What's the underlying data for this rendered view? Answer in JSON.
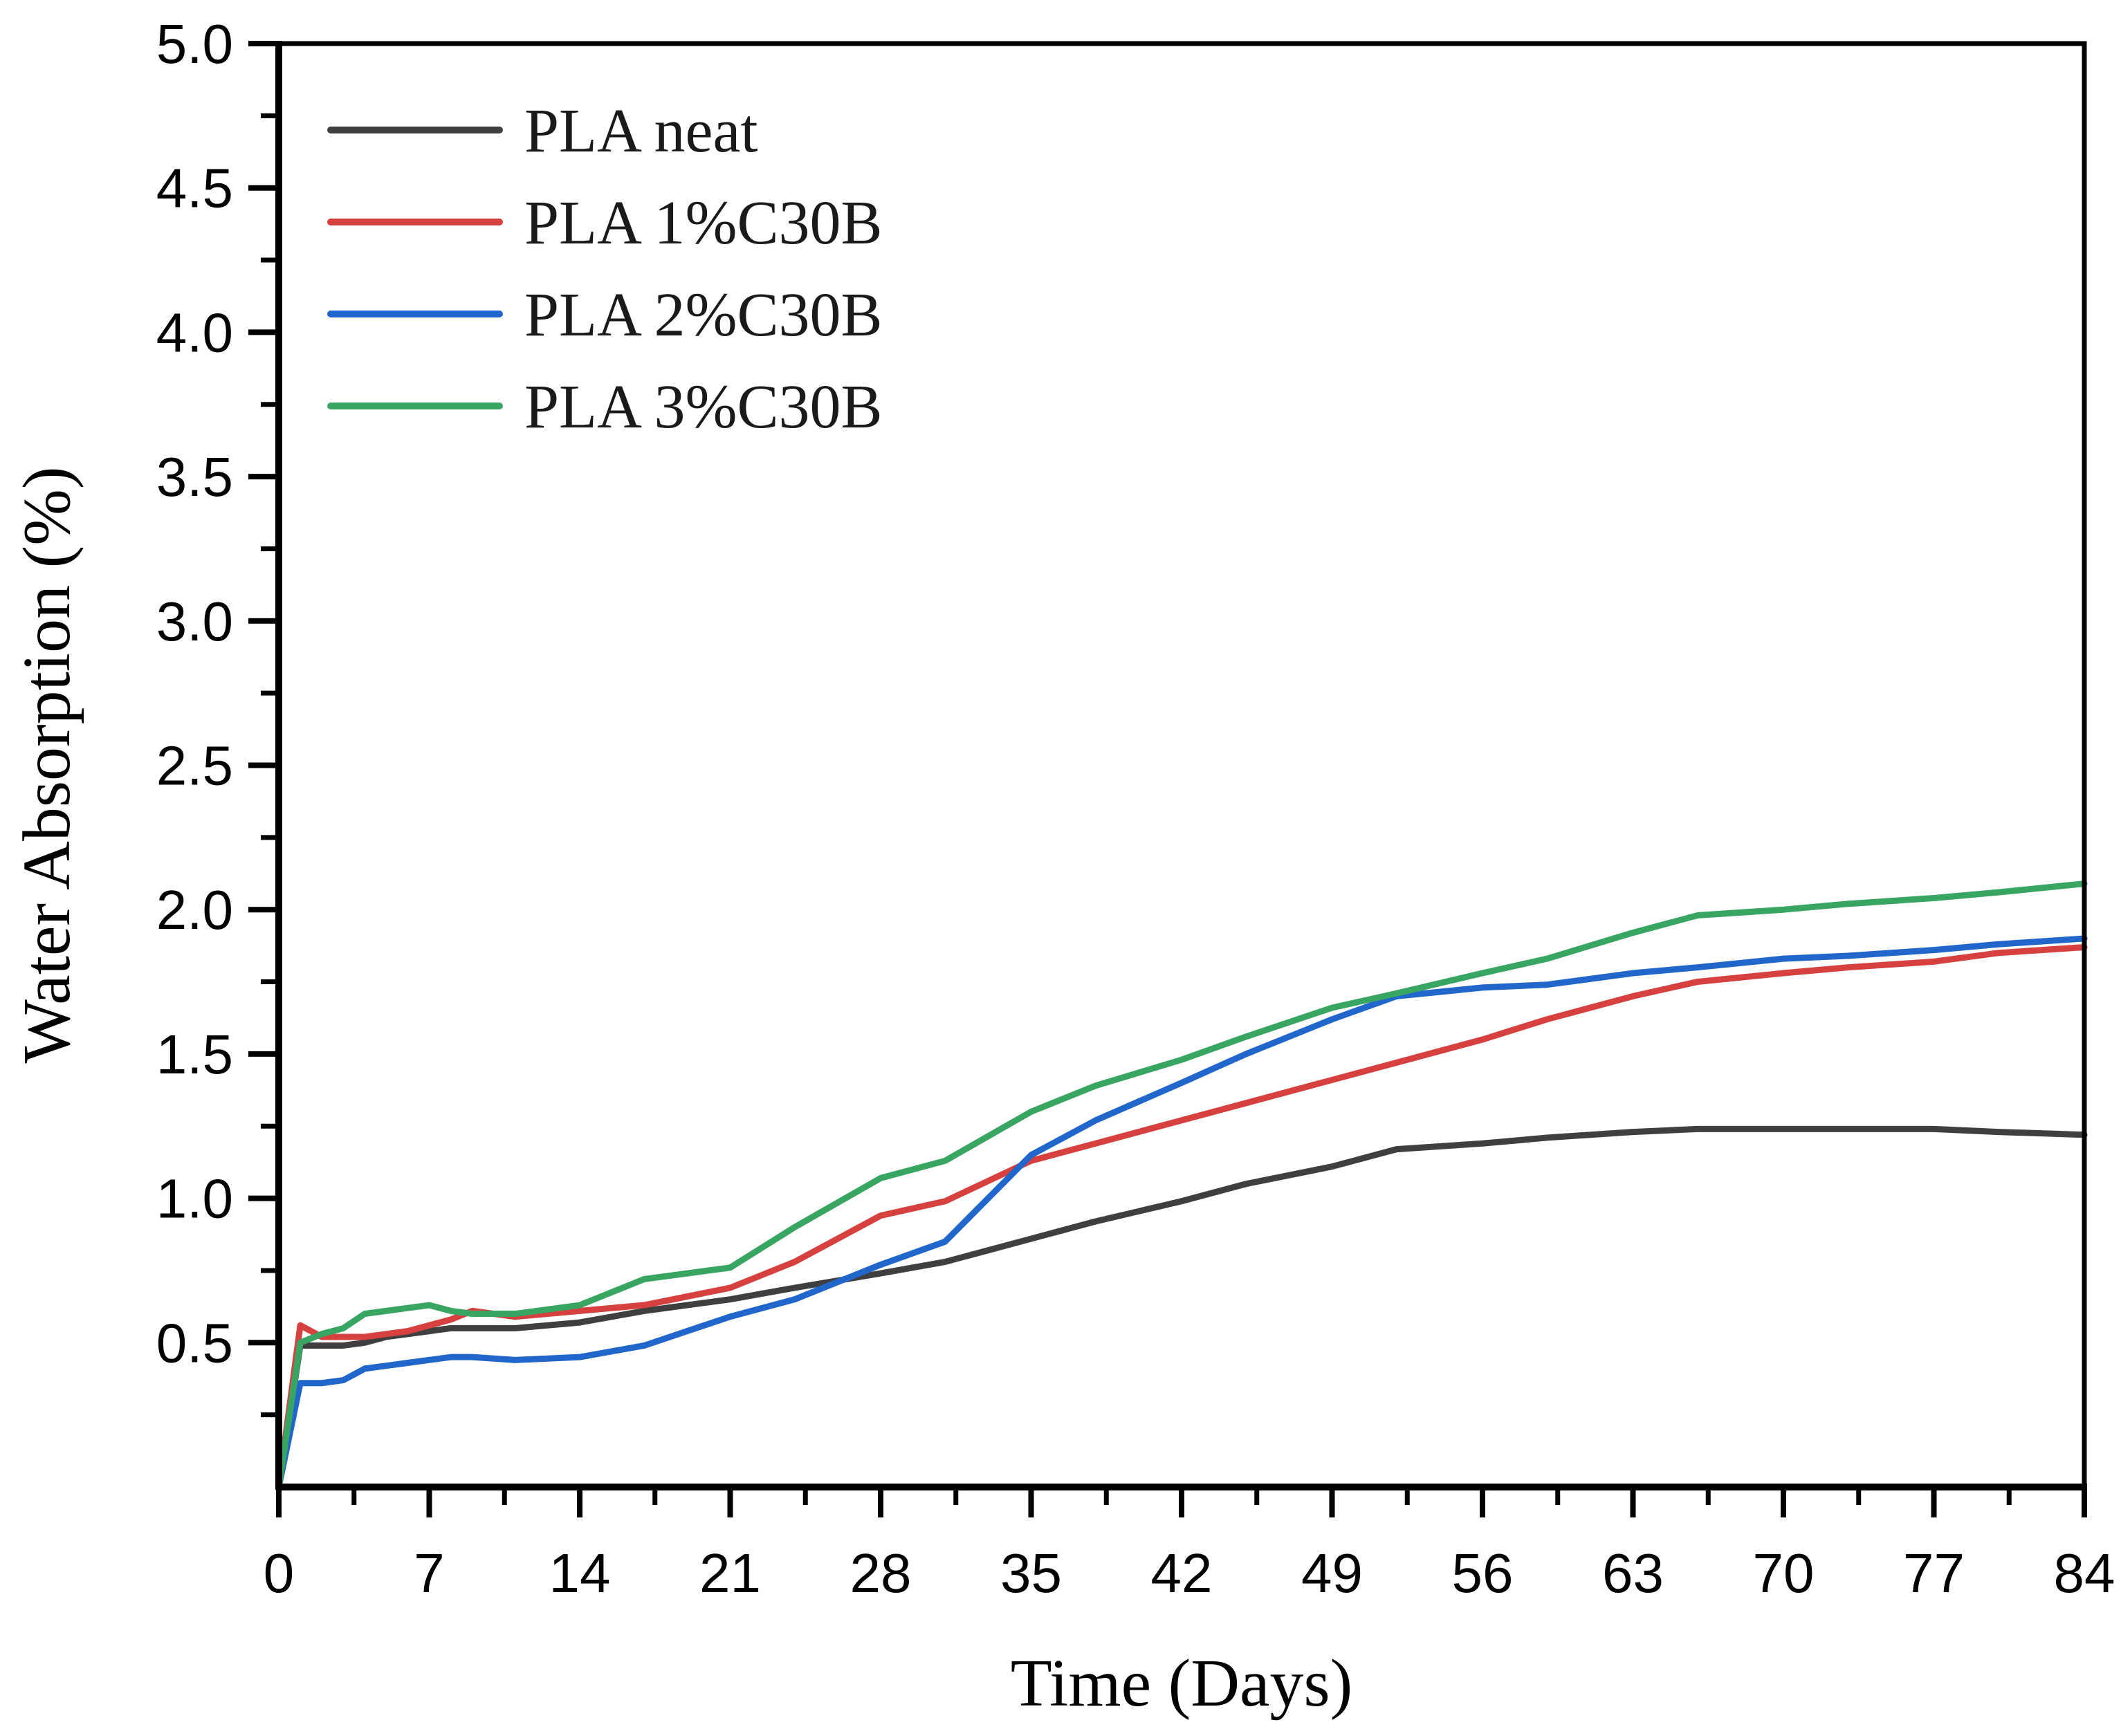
{
  "figure": {
    "background_color": "#ffffff",
    "frame_color": "#000000",
    "tick_color": "#000000"
  },
  "chart_data": {
    "type": "line",
    "title": "",
    "xlabel": "Time (Days)",
    "ylabel": "Water Absorption (%)",
    "xlim": [
      0,
      84
    ],
    "ylim": [
      0,
      5
    ],
    "x_major_ticks": [
      0,
      7,
      14,
      21,
      28,
      35,
      42,
      49,
      56,
      63,
      70,
      77,
      84
    ],
    "x_minor_first": 3.5,
    "x_minor_step": 7,
    "y_major_first": 0.5,
    "y_major_step": 0.5,
    "y_major_last": 5.0,
    "y_minor_first": 0.25,
    "y_minor_step": 0.5,
    "grid": false,
    "legend_position": "top-left",
    "x": [
      0,
      1,
      2,
      3,
      4,
      5,
      6,
      7,
      8,
      9,
      11,
      14,
      17,
      21,
      24,
      28,
      31,
      35,
      38,
      42,
      45,
      49,
      52,
      56,
      59,
      63,
      66,
      70,
      73,
      77,
      80,
      84
    ],
    "series": [
      {
        "name": "PLA neat",
        "color": "#3f3f3f",
        "values": [
          0,
          0.49,
          0.49,
          0.49,
          0.5,
          0.52,
          0.53,
          0.54,
          0.55,
          0.55,
          0.55,
          0.57,
          0.61,
          0.65,
          0.69,
          0.74,
          0.78,
          0.86,
          0.92,
          0.99,
          1.05,
          1.11,
          1.17,
          1.19,
          1.21,
          1.23,
          1.24,
          1.24,
          1.24,
          1.24,
          1.23,
          1.22
        ]
      },
      {
        "name": "PLA 1%C30B",
        "color": "#d6413f",
        "values": [
          0,
          0.56,
          0.52,
          0.52,
          0.52,
          0.53,
          0.54,
          0.56,
          0.58,
          0.61,
          0.59,
          0.61,
          0.63,
          0.69,
          0.78,
          0.94,
          0.99,
          1.13,
          1.19,
          1.27,
          1.33,
          1.41,
          1.47,
          1.55,
          1.62,
          1.7,
          1.75,
          1.78,
          1.8,
          1.82,
          1.85,
          1.87
        ]
      },
      {
        "name": "PLA 2%C30B",
        "color": "#2166cb",
        "values": [
          0,
          0.36,
          0.36,
          0.37,
          0.41,
          0.42,
          0.43,
          0.44,
          0.45,
          0.45,
          0.44,
          0.45,
          0.49,
          0.59,
          0.65,
          0.77,
          0.85,
          1.15,
          1.27,
          1.4,
          1.5,
          1.62,
          1.7,
          1.73,
          1.74,
          1.78,
          1.8,
          1.83,
          1.84,
          1.86,
          1.88,
          1.9
        ]
      },
      {
        "name": "PLA 3%C30B",
        "color": "#38a562",
        "values": [
          0,
          0.5,
          0.53,
          0.55,
          0.6,
          0.61,
          0.62,
          0.63,
          0.61,
          0.6,
          0.6,
          0.63,
          0.72,
          0.76,
          0.9,
          1.07,
          1.13,
          1.3,
          1.39,
          1.48,
          1.56,
          1.66,
          1.71,
          1.78,
          1.83,
          1.92,
          1.98,
          2.0,
          2.02,
          2.04,
          2.06,
          2.09
        ]
      }
    ]
  }
}
